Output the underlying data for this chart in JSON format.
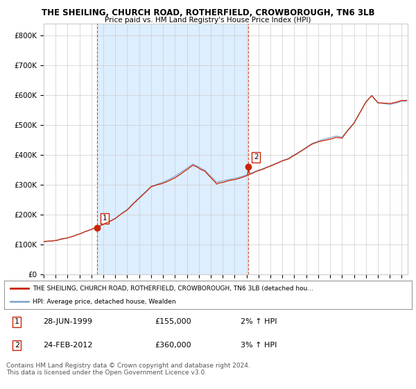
{
  "title1": "THE SHEILING, CHURCH ROAD, ROTHERFIELD, CROWBOROUGH, TN6 3LB",
  "title2": "Price paid vs. HM Land Registry's House Price Index (HPI)",
  "ylim": [
    0,
    840000
  ],
  "yticks": [
    0,
    100000,
    200000,
    300000,
    400000,
    500000,
    600000,
    700000,
    800000
  ],
  "ytick_labels": [
    "£0",
    "£100K",
    "£200K",
    "£300K",
    "£400K",
    "£500K",
    "£600K",
    "£700K",
    "£800K"
  ],
  "sale1_year": 1999.49,
  "sale1_price": 155000,
  "sale2_year": 2012.15,
  "sale2_price": 360000,
  "line_color_red": "#cc2200",
  "line_color_blue": "#88aacc",
  "marker_color": "#cc2200",
  "vline_color": "#cc2200",
  "grid_color": "#cccccc",
  "bg_color": "#ffffff",
  "shade_color": "#ddeeff",
  "legend_text1": "THE SHEILING, CHURCH ROAD, ROTHERFIELD, CROWBOROUGH, TN6 3LB (detached hou…",
  "legend_text2": "HPI: Average price, detached house, Wealden",
  "table_row1_label": "1",
  "table_row1_date": "28-JUN-1999",
  "table_row1_price": "£155,000",
  "table_row1_hpi": "2% ↑ HPI",
  "table_row2_label": "2",
  "table_row2_date": "24-FEB-2012",
  "table_row2_price": "£360,000",
  "table_row2_hpi": "3% ↑ HPI",
  "footer": "Contains HM Land Registry data © Crown copyright and database right 2024.\nThis data is licensed under the Open Government Licence v3.0.",
  "xstart": 1995.0,
  "xend": 2025.5
}
